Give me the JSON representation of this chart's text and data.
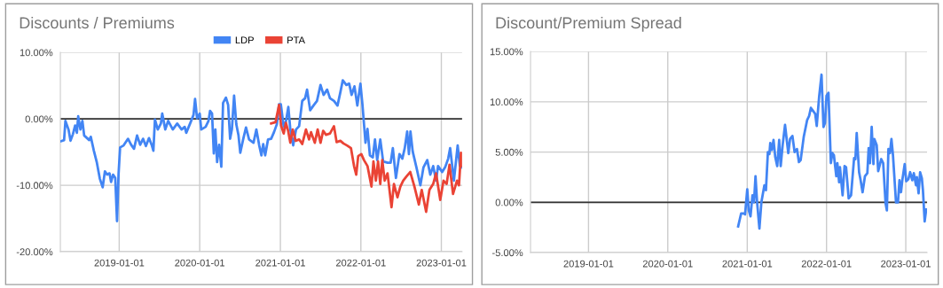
{
  "chart_data": [
    {
      "type": "line",
      "title": "Discounts / Premiums",
      "legend": "top",
      "grid": true,
      "marker": "none",
      "line_style": "solid",
      "xlim": [
        "2018-04-09",
        "2023-04-05"
      ],
      "xticks": [
        {
          "value": "2019-01-01",
          "label": "2019-01-01"
        },
        {
          "value": "2020-01-01",
          "label": "2020-01-01"
        },
        {
          "value": "2021-01-01",
          "label": "2021-01-01"
        },
        {
          "value": "2022-01-01",
          "label": "2022-01-01"
        },
        {
          "value": "2023-01-01",
          "label": "2023-01-01"
        }
      ],
      "ylim": [
        -20,
        10
      ],
      "yticks": [
        {
          "value": -20,
          "label": "-20.00%"
        },
        {
          "value": -10,
          "label": "-10.00%"
        },
        {
          "value": 0,
          "label": "0.00%"
        },
        {
          "value": 10,
          "label": "10.00%"
        }
      ],
      "ref_lines": [
        {
          "axis": "y",
          "value": 0,
          "color": "#333333"
        }
      ],
      "series": [
        {
          "name": "LDP",
          "color": "#4285f4",
          "x": [
            "2018-04-09",
            "2018-04-26",
            "2018-05-02",
            "2018-05-16",
            "2018-05-25",
            "2018-06-05",
            "2018-06-15",
            "2018-06-23",
            "2018-06-29",
            "2018-07-09",
            "2018-07-18",
            "2018-07-26",
            "2018-08-18",
            "2018-08-25",
            "2018-09-08",
            "2018-09-21",
            "2018-10-05",
            "2018-10-18",
            "2018-10-28",
            "2018-11-07",
            "2018-11-18",
            "2018-11-25",
            "2018-12-04",
            "2018-12-14",
            "2018-12-22",
            "2018-12-29",
            "2019-01-05",
            "2019-01-21",
            "2019-02-04",
            "2019-02-10",
            "2019-02-24",
            "2019-03-09",
            "2019-03-23",
            "2019-04-06",
            "2019-04-19",
            "2019-05-02",
            "2019-05-16",
            "2019-05-29",
            "2019-06-05",
            "2019-06-12",
            "2019-06-25",
            "2019-07-09",
            "2019-07-15",
            "2019-07-29",
            "2019-08-11",
            "2019-09-01",
            "2019-09-21",
            "2019-10-11",
            "2019-10-25",
            "2019-11-01",
            "2019-11-21",
            "2019-12-04",
            "2019-12-11",
            "2019-12-20",
            "2020-01-01",
            "2020-01-08",
            "2020-01-28",
            "2020-02-10",
            "2020-02-17",
            "2020-02-26",
            "2020-03-05",
            "2020-03-12",
            "2020-03-20",
            "2020-03-29",
            "2020-04-08",
            "2020-04-16",
            "2020-04-29",
            "2020-05-09",
            "2020-05-18",
            "2020-05-26",
            "2020-06-05",
            "2020-06-15",
            "2020-06-25",
            "2020-07-03",
            "2020-07-16",
            "2020-07-29",
            "2020-08-12",
            "2020-09-01",
            "2020-09-14",
            "2020-09-27",
            "2020-10-07",
            "2020-10-15",
            "2020-10-24",
            "2020-11-06",
            "2020-11-20",
            "2020-12-03",
            "2020-12-16",
            "2020-12-26",
            "2021-01-03",
            "2021-01-16",
            "2021-01-26",
            "2021-02-06",
            "2021-02-15",
            "2021-02-28",
            "2021-03-13",
            "2021-03-27",
            "2021-04-10",
            "2021-04-23",
            "2021-05-02",
            "2021-05-16",
            "2021-05-31",
            "2021-06-16",
            "2021-07-02",
            "2021-07-16",
            "2021-08-01",
            "2021-08-14",
            "2021-09-01",
            "2021-09-17",
            "2021-09-30",
            "2021-10-11",
            "2021-10-27",
            "2021-11-09",
            "2021-11-20",
            "2021-12-03",
            "2021-12-16",
            "2021-12-30",
            "2022-01-08",
            "2022-01-22",
            "2022-01-31",
            "2022-02-11",
            "2022-02-24",
            "2022-03-06",
            "2022-03-16",
            "2022-03-30",
            "2022-04-12",
            "2022-05-02",
            "2022-05-16",
            "2022-05-26",
            "2022-06-09",
            "2022-06-25",
            "2022-07-08",
            "2022-07-19",
            "2022-07-30",
            "2022-08-07",
            "2022-08-14",
            "2022-08-24",
            "2022-09-10",
            "2022-09-28",
            "2022-10-12",
            "2022-10-29",
            "2022-11-12",
            "2022-11-25",
            "2022-12-08",
            "2022-12-17",
            "2023-01-05",
            "2023-01-18",
            "2023-02-01",
            "2023-02-10",
            "2023-02-27",
            "2023-03-16",
            "2023-03-26",
            "2023-04-04"
          ],
          "values": [
            -3.4,
            -3.2,
            -0.3,
            -1.6,
            -3.3,
            -2.3,
            -1.0,
            -2.1,
            0.4,
            -1.6,
            -0.3,
            -2.5,
            -3.2,
            -2.7,
            -4.8,
            -6.5,
            -9.0,
            -10.3,
            -7.9,
            -8.4,
            -8.2,
            -9.5,
            -8.4,
            -8.9,
            -15.4,
            -8.3,
            -4.3,
            -4.0,
            -3.3,
            -3.0,
            -3.9,
            -4.5,
            -2.5,
            -3.9,
            -3.0,
            -4.1,
            -2.9,
            -4.0,
            -4.8,
            -0.1,
            -1.6,
            -0.7,
            0.8,
            -1.6,
            -0.3,
            -1.6,
            -0.7,
            -1.6,
            -1.2,
            -2.1,
            -0.5,
            0.6,
            3.0,
            0.1,
            0.8,
            -1.6,
            -1.2,
            -0.3,
            1.2,
            0.8,
            -5.2,
            -1.6,
            -6.5,
            -3.9,
            -7.2,
            2.4,
            3.2,
            2.1,
            -3.0,
            -1.6,
            3.5,
            -0.8,
            -2.5,
            -5.1,
            -3.1,
            -1.3,
            -3.1,
            -3.6,
            -1.6,
            -4.0,
            -5.5,
            -3.8,
            -5.5,
            -3.1,
            -3.0,
            -2.0,
            -0.8,
            2.2,
            2.2,
            -1.2,
            -0.4,
            1.8,
            -1.6,
            -4.0,
            -1.6,
            -1.1,
            2.7,
            3.1,
            4.4,
            1.3,
            2.0,
            2.7,
            5.1,
            3.6,
            4.4,
            3.1,
            2.7,
            2.0,
            4.0,
            5.8,
            5.1,
            5.3,
            3.6,
            4.9,
            2.0,
            5.3,
            2.2,
            -3.6,
            -1.5,
            -5.5,
            -5.8,
            -3.1,
            -6.2,
            -3.1,
            -6.4,
            -6.6,
            -6.6,
            -4.4,
            -8.9,
            -5.3,
            -6.0,
            -4.4,
            -1.9,
            -5.3,
            -1.9,
            -4.9,
            -7.3,
            -10.0,
            -7.3,
            -6.2,
            -8.4,
            -7.1,
            -9.3,
            -7.1,
            -8.0,
            -7.3,
            -6.0,
            -4.4,
            -9.3,
            -4.0,
            -7.1,
            -7.3
          ]
        },
        {
          "name": "PTA",
          "color": "#ea4335",
          "x": [
            "2020-11-20",
            "2020-12-10",
            "2020-12-26",
            "2021-01-04",
            "2021-01-16",
            "2021-01-26",
            "2021-02-05",
            "2021-02-15",
            "2021-02-26",
            "2021-03-11",
            "2021-03-27",
            "2021-04-10",
            "2021-04-27",
            "2021-05-11",
            "2021-05-20",
            "2021-06-06",
            "2021-06-19",
            "2021-07-02",
            "2021-07-14",
            "2021-07-27",
            "2021-08-14",
            "2021-09-01",
            "2021-09-13",
            "2021-09-30",
            "2021-10-14",
            "2021-10-30",
            "2021-11-17",
            "2021-12-01",
            "2021-12-11",
            "2021-12-20",
            "2022-01-03",
            "2022-01-15",
            "2022-01-31",
            "2022-02-18",
            "2022-02-27",
            "2022-03-10",
            "2022-03-20",
            "2022-03-30",
            "2022-04-08",
            "2022-04-19",
            "2022-05-02",
            "2022-05-20",
            "2022-05-31",
            "2022-06-16",
            "2022-06-29",
            "2022-07-12",
            "2022-07-26",
            "2022-08-13",
            "2022-09-01",
            "2022-09-21",
            "2022-10-04",
            "2022-10-24",
            "2022-11-08",
            "2022-11-25",
            "2022-12-08",
            "2022-12-27",
            "2023-01-11",
            "2023-01-25",
            "2023-02-07",
            "2023-02-23",
            "2023-03-13",
            "2023-03-22",
            "2023-03-31",
            "2023-04-04"
          ],
          "values": [
            -0.7,
            -0.5,
            2.1,
            -1.0,
            -2.2,
            -0.6,
            -1.8,
            -3.6,
            -1.6,
            -3.3,
            -3.1,
            -3.8,
            -1.6,
            -3.1,
            -2.0,
            -3.6,
            -1.6,
            -3.6,
            -1.8,
            -2.4,
            -2.2,
            -1.1,
            -3.5,
            -3.3,
            -3.7,
            -4.0,
            -4.4,
            -7.1,
            -8.4,
            -5.6,
            -5.3,
            -6.2,
            -7.1,
            -10.2,
            -6.4,
            -9.3,
            -6.4,
            -9.8,
            -6.2,
            -9.3,
            -8.2,
            -13.3,
            -9.8,
            -11.8,
            -10.2,
            -9.3,
            -8.7,
            -8.0,
            -10.2,
            -12.9,
            -10.7,
            -14.0,
            -10.7,
            -9.8,
            -8.2,
            -12.2,
            -9.3,
            -9.8,
            -6.9,
            -11.3,
            -9.3,
            -10.0,
            -5.1,
            -7.1
          ]
        }
      ]
    },
    {
      "type": "line",
      "title": "Discount/Premium Spread",
      "grid": true,
      "marker": "none",
      "line_style": "solid",
      "xlim": [
        "2018-04-09",
        "2023-04-09"
      ],
      "xticks": [
        {
          "value": "2019-01-01",
          "label": "2019-01-01"
        },
        {
          "value": "2020-01-01",
          "label": "2020-01-01"
        },
        {
          "value": "2021-01-01",
          "label": "2021-01-01"
        },
        {
          "value": "2022-01-01",
          "label": "2022-01-01"
        },
        {
          "value": "2023-01-01",
          "label": "2023-01-01"
        }
      ],
      "ylim": [
        -5,
        15
      ],
      "yticks": [
        {
          "value": -5,
          "label": "-5.00%"
        },
        {
          "value": 0,
          "label": "0.00%"
        },
        {
          "value": 5,
          "label": "5.00%"
        },
        {
          "value": 10,
          "label": "10.00%"
        },
        {
          "value": 15,
          "label": "15.00%"
        }
      ],
      "ref_lines": [
        {
          "axis": "y",
          "value": 0,
          "color": "#333333"
        }
      ],
      "series": [
        {
          "color": "#4285f4",
          "x": [
            "2020-11-20",
            "2020-12-04",
            "2020-12-15",
            "2020-12-22",
            "2021-01-01",
            "2021-01-08",
            "2021-01-16",
            "2021-01-25",
            "2021-02-01",
            "2021-02-08",
            "2021-02-15",
            "2021-02-26",
            "2021-03-07",
            "2021-03-21",
            "2021-03-28",
            "2021-04-06",
            "2021-04-13",
            "2021-04-17",
            "2021-04-24",
            "2021-05-02",
            "2021-05-10",
            "2021-05-19",
            "2021-05-28",
            "2021-06-04",
            "2021-06-13",
            "2021-06-24",
            "2021-07-03",
            "2021-07-09",
            "2021-07-17",
            "2021-07-28",
            "2021-08-07",
            "2021-08-18",
            "2021-08-27",
            "2021-09-04",
            "2021-09-18",
            "2021-10-04",
            "2021-10-13",
            "2021-10-21",
            "2021-10-31",
            "2021-11-10",
            "2021-11-17",
            "2021-11-28",
            "2021-12-09",
            "2021-12-18",
            "2021-12-25",
            "2022-01-01",
            "2022-01-10",
            "2022-01-21",
            "2022-01-28",
            "2022-02-04",
            "2022-02-15",
            "2022-02-20",
            "2022-02-28",
            "2022-03-04",
            "2022-03-16",
            "2022-03-25",
            "2022-04-01",
            "2022-04-13",
            "2022-04-24",
            "2022-05-08",
            "2022-05-14",
            "2022-05-20",
            "2022-05-31",
            "2022-06-07",
            "2022-06-16",
            "2022-06-27",
            "2022-07-08",
            "2022-07-14",
            "2022-07-20",
            "2022-07-28",
            "2022-08-05",
            "2022-08-09",
            "2022-08-20",
            "2022-08-27",
            "2022-09-10",
            "2022-09-19",
            "2022-09-30",
            "2022-10-06",
            "2022-10-13",
            "2022-10-20",
            "2022-10-27",
            "2022-11-03",
            "2022-11-17",
            "2022-11-26",
            "2022-12-03",
            "2022-12-10",
            "2022-12-16",
            "2022-12-27",
            "2023-01-03",
            "2023-01-13",
            "2023-01-21",
            "2023-01-31",
            "2023-02-07",
            "2023-02-17",
            "2023-02-21",
            "2023-03-01",
            "2023-03-08",
            "2023-03-16",
            "2023-03-21",
            "2023-03-29",
            "2023-04-05"
          ],
          "values": [
            -2.4,
            -1.1,
            -1.1,
            -1.2,
            1.3,
            -0.8,
            -1.4,
            0.7,
            0.0,
            2.6,
            0.1,
            -2.6,
            0.0,
            1.7,
            1.2,
            5.0,
            4.8,
            5.9,
            5.2,
            6.2,
            4.5,
            3.6,
            6.2,
            3.6,
            5.7,
            7.7,
            6.0,
            4.9,
            6.3,
            6.6,
            5.0,
            5.3,
            4.0,
            4.2,
            6.5,
            8.2,
            8.6,
            9.4,
            9.1,
            8.8,
            7.6,
            10.5,
            12.7,
            7.5,
            7.9,
            10.6,
            10.9,
            3.9,
            4.9,
            4.7,
            2.6,
            3.9,
            2.0,
            3.5,
            0.7,
            3.6,
            3.5,
            0.4,
            0.7,
            4.4,
            4.3,
            6.9,
            3.0,
            2.2,
            1.0,
            2.6,
            2.9,
            5.4,
            3.9,
            7.5,
            3.8,
            6.3,
            5.7,
            3.1,
            4.3,
            3.9,
            -0.1,
            -0.8,
            5.3,
            4.9,
            6.3,
            4.7,
            0.0,
            0.0,
            2.2,
            1.0,
            2.2,
            3.8,
            2.1,
            2.3,
            3.0,
            2.2,
            2.9,
            1.7,
            2.5,
            0.9,
            3.0,
            2.4,
            1.2,
            -1.9,
            -0.7
          ]
        }
      ]
    }
  ]
}
